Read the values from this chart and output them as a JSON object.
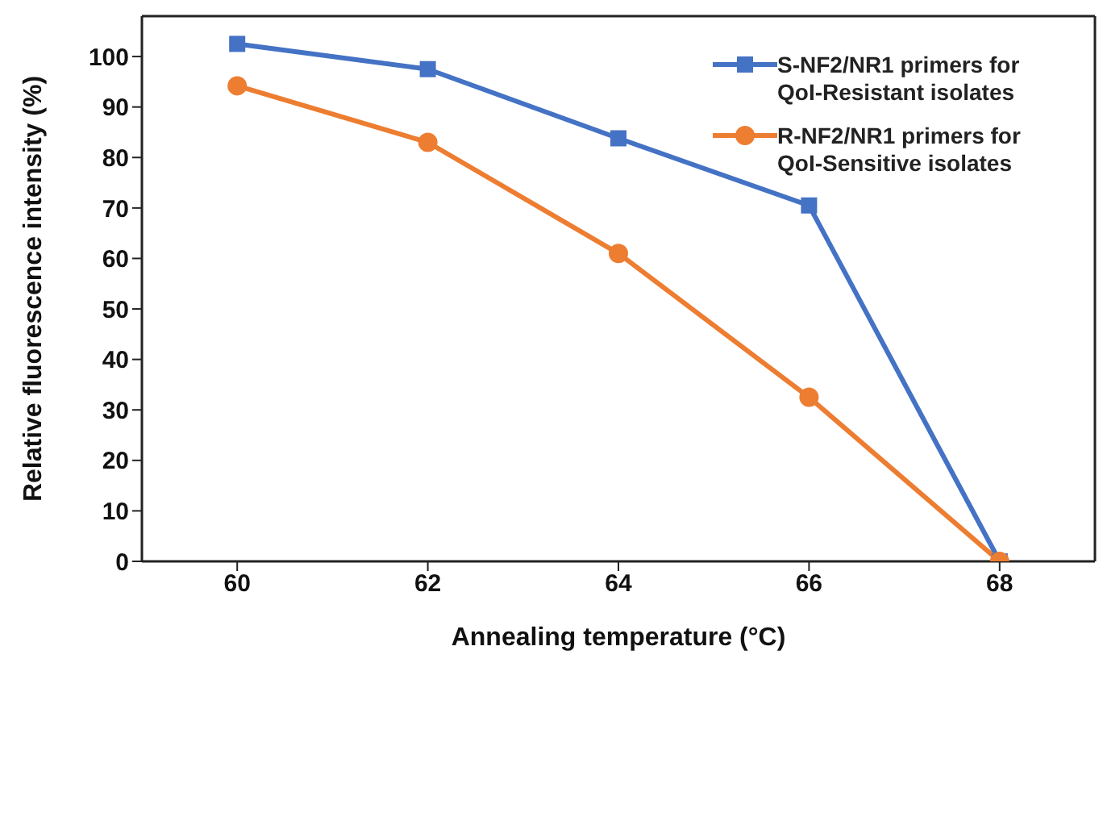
{
  "chart_data": {
    "type": "line",
    "xlabel": "Annealing temperature (°C)",
    "ylabel": "Relative fluorescence intensity (%)",
    "x": [
      60,
      62,
      64,
      66,
      68
    ],
    "series": [
      {
        "name": "S-NF2/NR1 primers for QoI-Resistant isolates",
        "color": "#4472c4",
        "marker": "square",
        "values": [
          102.5,
          97.5,
          83.8,
          70.5,
          0
        ]
      },
      {
        "name": "R-NF2/NR1 primers for QoI-Sensitive isolates",
        "color": "#ed7d31",
        "marker": "circle",
        "values": [
          94.2,
          83,
          61,
          32.5,
          0
        ]
      }
    ],
    "xlim": [
      59,
      69
    ],
    "xticks": [
      60,
      62,
      64,
      66,
      68
    ],
    "ylim": [
      0,
      108
    ],
    "yticks": [
      0,
      10,
      20,
      30,
      40,
      50,
      60,
      70,
      80,
      90,
      100
    ],
    "grid": false,
    "legend": "top right",
    "line_style": "solid"
  }
}
